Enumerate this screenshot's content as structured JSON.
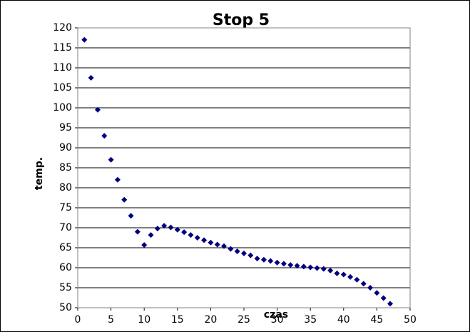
{
  "chart_data": {
    "type": "scatter",
    "title": "Stop 5",
    "x_label": "czas",
    "y_label": "temp.",
    "series": [
      {
        "color": "#000080",
        "x": [
          1,
          2,
          3,
          4,
          5,
          6,
          7,
          8,
          9,
          10,
          11,
          12,
          13,
          14,
          15,
          16,
          17,
          18,
          19,
          20,
          21,
          22,
          23,
          24,
          25,
          26,
          27,
          28,
          29,
          30,
          31,
          32,
          33,
          34,
          35,
          36,
          37,
          38,
          39,
          40,
          41,
          42,
          43,
          44,
          45,
          46,
          47
        ],
        "values": [
          117,
          107.5,
          99.5,
          93,
          87,
          82,
          77,
          73,
          69,
          65.7,
          68.2,
          69.8,
          70.5,
          70.1,
          69.5,
          68.9,
          68.2,
          67.5,
          66.9,
          66.3,
          65.8,
          65.4,
          64.7,
          64.1,
          63.6,
          63.1,
          62.3,
          62,
          61.7,
          61.3,
          61,
          60.7,
          60.5,
          60.3,
          60.1,
          59.9,
          59.7,
          59.3,
          58.6,
          58.3,
          57.7,
          57,
          56,
          55,
          53.7,
          52.4,
          51
        ]
      }
    ],
    "xlim": [
      0,
      50
    ],
    "xticks": [
      0,
      5,
      10,
      15,
      20,
      25,
      30,
      35,
      40,
      45,
      50
    ],
    "ylim": [
      50,
      120
    ],
    "yticks": [
      50,
      55,
      60,
      65,
      70,
      75,
      80,
      85,
      90,
      95,
      100,
      105,
      110,
      115,
      120
    ],
    "grid": true
  }
}
